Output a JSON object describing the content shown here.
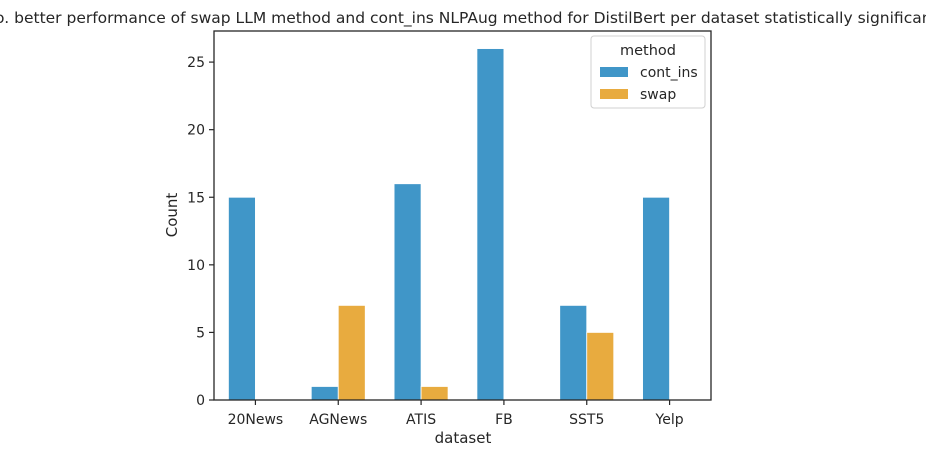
{
  "chart_data": {
    "type": "bar",
    "title": "No. better performance of swap LLM method and cont_ins NLPAug method for DistilBert per dataset statistically significant.",
    "xlabel": "dataset",
    "ylabel": "Count",
    "categories": [
      "20News",
      "AGNews",
      "ATIS",
      "FB",
      "SST5",
      "Yelp"
    ],
    "series": [
      {
        "name": "cont_ins",
        "values": [
          15,
          1,
          16,
          26,
          7,
          15
        ],
        "color": "#4096c8"
      },
      {
        "name": "swap",
        "values": [
          0,
          7,
          1,
          0,
          5,
          0
        ],
        "color": "#e8ab3f"
      }
    ],
    "ylim": [
      0,
      27.3
    ],
    "yticks": [
      0,
      5,
      10,
      15,
      20,
      25
    ],
    "grid": false,
    "legend": {
      "title": "method",
      "placement": "top-right"
    }
  }
}
